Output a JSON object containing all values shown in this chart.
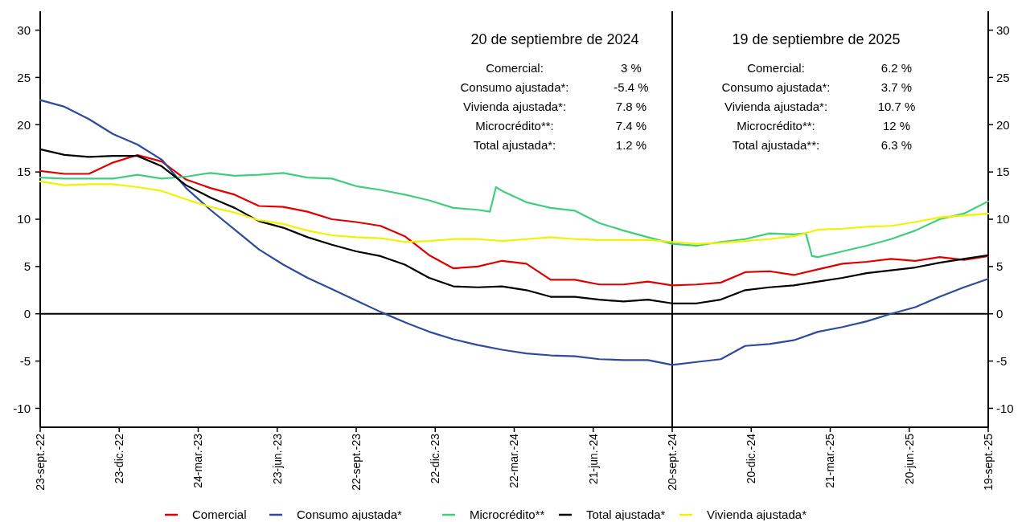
{
  "chart_data": {
    "type": "line",
    "x": [
      "2022-09-23",
      "2022-10-21",
      "2022-11-18",
      "2022-12-16",
      "2023-01-13",
      "2023-02-10",
      "2023-03-10",
      "2023-04-07",
      "2023-05-05",
      "2023-06-02",
      "2023-06-30",
      "2023-07-28",
      "2023-08-25",
      "2023-09-22",
      "2023-10-20",
      "2023-11-17",
      "2023-12-15",
      "2024-01-12",
      "2024-02-09",
      "2024-03-08",
      "2024-04-05",
      "2024-05-03",
      "2024-05-31",
      "2024-06-28",
      "2024-07-26",
      "2024-08-23",
      "2024-09-20",
      "2024-10-18",
      "2024-11-15",
      "2024-12-13",
      "2025-01-10",
      "2025-02-07",
      "2025-03-07",
      "2025-04-04",
      "2025-05-02",
      "2025-05-30",
      "2025-06-27",
      "2025-07-25",
      "2025-08-22",
      "2025-09-19"
    ],
    "series": [
      {
        "name": "Comercial",
        "color": "#e00000",
        "values": [
          15.1,
          14.8,
          14.8,
          16.0,
          16.8,
          16.1,
          14.2,
          13.3,
          12.6,
          11.4,
          11.3,
          10.8,
          10.0,
          9.7,
          9.3,
          8.2,
          6.2,
          4.8,
          5.0,
          5.6,
          5.3,
          3.6,
          3.6,
          3.1,
          3.1,
          3.4,
          3.0,
          3.1,
          3.3,
          4.4,
          4.5,
          4.1,
          4.7,
          5.3,
          5.5,
          5.8,
          5.6,
          6.0,
          5.7,
          6.1
        ]
      },
      {
        "name": "Consumo ajustada*",
        "color": "#2e4a9e",
        "values": [
          22.6,
          21.9,
          20.6,
          19.0,
          17.9,
          16.3,
          13.3,
          11.0,
          8.9,
          6.8,
          5.2,
          3.8,
          2.6,
          1.4,
          0.2,
          -0.9,
          -1.9,
          -2.7,
          -3.3,
          -3.8,
          -4.2,
          -4.4,
          -4.5,
          -4.8,
          -4.9,
          -4.9,
          -5.4,
          -5.1,
          -4.8,
          -3.4,
          -3.2,
          -2.8,
          -1.9,
          -1.4,
          -0.8,
          0.0,
          0.7,
          1.8,
          2.8,
          3.7
        ]
      },
      {
        "name": "Microcrédito**",
        "color": "#3fcf7c",
        "x": [
          "2022-09-23",
          "2022-10-21",
          "2022-11-18",
          "2022-12-16",
          "2023-01-13",
          "2023-02-10",
          "2023-03-10",
          "2023-04-07",
          "2023-05-05",
          "2023-06-02",
          "2023-06-30",
          "2023-07-28",
          "2023-08-25",
          "2023-09-22",
          "2023-10-20",
          "2023-11-17",
          "2023-12-15",
          "2024-01-12",
          "2024-02-09",
          "2024-02-23",
          "2024-03-01",
          "2024-03-08",
          "2024-04-05",
          "2024-05-03",
          "2024-05-31",
          "2024-06-28",
          "2024-07-26",
          "2024-08-23",
          "2024-09-20",
          "2024-10-18",
          "2024-11-15",
          "2024-12-13",
          "2025-01-10",
          "2025-02-07",
          "2025-02-21",
          "2025-02-28",
          "2025-03-07",
          "2025-04-04",
          "2025-05-02",
          "2025-05-30",
          "2025-06-27",
          "2025-07-25",
          "2025-08-22",
          "2025-09-19"
        ],
        "values": [
          14.4,
          14.3,
          14.3,
          14.3,
          14.7,
          14.3,
          14.5,
          14.9,
          14.6,
          14.7,
          14.9,
          14.4,
          14.3,
          13.5,
          13.1,
          12.6,
          12.0,
          11.2,
          11.0,
          10.8,
          13.4,
          13.0,
          11.8,
          11.2,
          10.9,
          9.6,
          8.8,
          8.1,
          7.4,
          7.2,
          7.6,
          7.9,
          8.5,
          8.4,
          8.5,
          6.1,
          6.0,
          6.6,
          7.2,
          7.9,
          8.8,
          10.0,
          10.6,
          11.9
        ]
      },
      {
        "name": "Total ajustada*",
        "color": "#000000",
        "values": [
          17.4,
          16.8,
          16.6,
          16.7,
          16.7,
          15.6,
          13.6,
          12.3,
          11.2,
          9.8,
          9.1,
          8.1,
          7.3,
          6.6,
          6.1,
          5.2,
          3.8,
          2.9,
          2.8,
          2.9,
          2.5,
          1.8,
          1.8,
          1.5,
          1.3,
          1.5,
          1.1,
          1.1,
          1.5,
          2.5,
          2.8,
          3.0,
          3.4,
          3.8,
          4.3,
          4.6,
          4.9,
          5.4,
          5.8,
          6.2
        ]
      },
      {
        "name": "Vivienda ajustada*",
        "color": "#f2f200",
        "values": [
          14.0,
          13.6,
          13.7,
          13.7,
          13.4,
          13.0,
          12.1,
          11.3,
          10.7,
          9.9,
          9.5,
          8.8,
          8.3,
          8.1,
          8.0,
          7.6,
          7.7,
          7.9,
          7.9,
          7.7,
          7.9,
          8.1,
          7.9,
          7.8,
          7.8,
          7.8,
          7.6,
          7.4,
          7.5,
          7.7,
          7.9,
          8.2,
          8.9,
          9.0,
          9.2,
          9.3,
          9.7,
          10.2,
          10.4,
          10.6
        ]
      }
    ],
    "xlim": [
      "2022-09-23",
      "2025-09-19"
    ],
    "xticks": [
      {
        "value": "2022-09-23",
        "label": "23-sept.-22"
      },
      {
        "value": "2022-12-23",
        "label": "23-dic.-22"
      },
      {
        "value": "2023-03-24",
        "label": "24-mar.-23"
      },
      {
        "value": "2023-06-23",
        "label": "23-jun.-23"
      },
      {
        "value": "2023-09-22",
        "label": "22-sept.-23"
      },
      {
        "value": "2023-12-22",
        "label": "22-dic.-23"
      },
      {
        "value": "2024-03-22",
        "label": "22-mar.-24"
      },
      {
        "value": "2024-06-21",
        "label": "21-jun.-24"
      },
      {
        "value": "2024-09-20",
        "label": "20-sept.-24"
      },
      {
        "value": "2024-12-20",
        "label": "20-dic.-24"
      },
      {
        "value": "2025-03-21",
        "label": "21-mar.-25"
      },
      {
        "value": "2025-06-20",
        "label": "20-jun.-25"
      },
      {
        "value": "2025-09-19",
        "label": "19-sept.-25"
      }
    ],
    "ylim": [
      -12,
      32
    ],
    "yticks": [
      -10,
      -5,
      0,
      5,
      10,
      15,
      20,
      25,
      30
    ],
    "y2lim": [
      -12,
      32
    ],
    "y2ticks": [
      -10,
      -5,
      0,
      5,
      10,
      15,
      20,
      25,
      30
    ],
    "ref_lines": [
      {
        "axis": "x",
        "value": "2024-09-20",
        "color": "#000000"
      },
      {
        "axis": "y",
        "value": 0,
        "color": "#000000"
      }
    ],
    "annotations": [
      "20 de septiembre de 2024",
      "Comercial:",
      "3 %",
      "Consumo ajustada*:",
      "-5.4 %",
      "Vivienda ajustada*:",
      "7.8 %",
      "Microcrédito**:",
      "7.4 %",
      "Total ajustada*:",
      "1.2 %",
      "19 de septiembre de 2025",
      "Comercial:",
      "6.2 %",
      "Consumo ajustada*:",
      "3.7 %",
      "Vivienda ajustada*:",
      "10.7 %",
      "Microcrédito**:",
      "12 %",
      "Total ajustada**:",
      "6.3 %"
    ],
    "grid": false,
    "legend": "bottom",
    "marker": "none",
    "line_style": "solid"
  }
}
